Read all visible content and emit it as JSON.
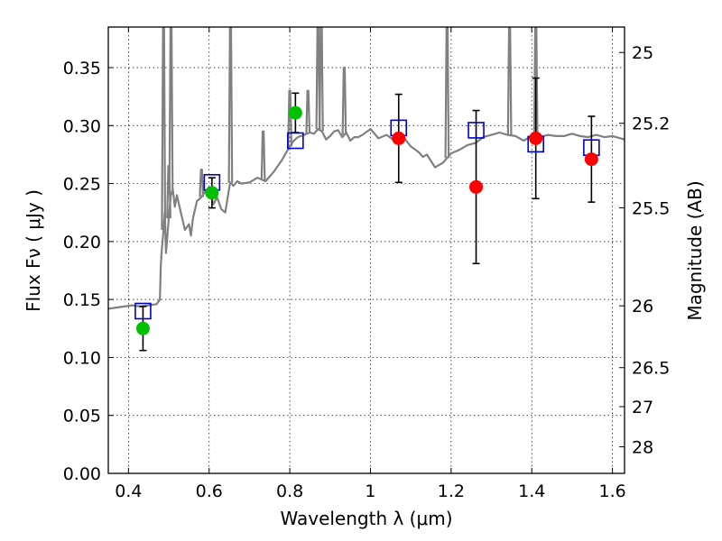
{
  "chart_data": {
    "type": "scatter",
    "xlabel": "Wavelength  λ (μm)",
    "ylabel": "Flux  Fν  ( μJy )",
    "y2label": "Magnitude (AB)",
    "xlim": [
      0.35,
      1.63
    ],
    "ylim": [
      0.0,
      0.385
    ],
    "grid": true,
    "x_ticks": [
      0.4,
      0.6,
      0.8,
      1.0,
      1.2,
      1.4,
      1.6
    ],
    "x_tick_labels": [
      "0.4",
      "0.6",
      "0.8",
      "1",
      "1.2",
      "1.4",
      "1.6"
    ],
    "y_ticks": [
      0.0,
      0.05,
      0.1,
      0.15,
      0.2,
      0.25,
      0.3,
      0.35
    ],
    "y_tick_labels": [
      "0.00",
      "0.05",
      "0.10",
      "0.15",
      "0.20",
      "0.25",
      "0.30",
      "0.35"
    ],
    "y2_ticks": [
      25,
      25.2,
      25.5,
      26,
      26.5,
      27,
      28
    ],
    "y2_tick_labels": [
      "25",
      "25.2",
      "25.5",
      "26",
      "26.5",
      "27",
      "28"
    ],
    "colors": {
      "model": "#808080",
      "model_box": "#0000cc",
      "optical": "#00c000",
      "nir": "#ff0000",
      "errorbar": "#000000"
    },
    "model_spectrum": {
      "x": [
        0.35,
        0.37,
        0.39,
        0.41,
        0.43,
        0.45,
        0.47,
        0.478,
        0.48,
        0.482,
        0.487,
        0.49,
        0.493,
        0.5,
        0.505,
        0.51,
        0.515,
        0.52,
        0.53,
        0.54,
        0.55,
        0.555,
        0.56,
        0.57,
        0.58,
        0.59,
        0.6,
        0.605,
        0.61,
        0.62,
        0.63,
        0.64,
        0.647,
        0.652,
        0.656,
        0.66,
        0.67,
        0.68,
        0.7,
        0.72,
        0.74,
        0.76,
        0.77,
        0.78,
        0.79,
        0.8,
        0.81,
        0.82,
        0.835,
        0.85,
        0.86,
        0.87,
        0.88,
        0.89,
        0.9,
        0.91,
        0.92,
        0.93,
        0.94,
        0.95,
        0.96,
        0.97,
        0.98,
        1.0,
        1.02,
        1.04,
        1.06,
        1.08,
        1.1,
        1.12,
        1.13,
        1.14,
        1.16,
        1.18,
        1.2,
        1.22,
        1.24,
        1.26,
        1.28,
        1.3,
        1.32,
        1.34,
        1.36,
        1.38,
        1.4,
        1.42,
        1.44,
        1.46,
        1.48,
        1.5,
        1.52,
        1.54,
        1.56,
        1.58,
        1.6,
        1.63
      ],
      "flux": [
        0.142,
        0.143,
        0.144,
        0.145,
        0.144,
        0.145,
        0.146,
        0.15,
        0.178,
        0.19,
        0.21,
        0.225,
        0.19,
        0.22,
        0.24,
        0.245,
        0.23,
        0.24,
        0.225,
        0.21,
        0.215,
        0.205,
        0.22,
        0.235,
        0.238,
        0.243,
        0.247,
        0.24,
        0.232,
        0.238,
        0.228,
        0.225,
        0.24,
        0.251,
        0.25,
        0.248,
        0.252,
        0.25,
        0.251,
        0.255,
        0.252,
        0.26,
        0.265,
        0.27,
        0.276,
        0.282,
        0.287,
        0.29,
        0.292,
        0.294,
        0.293,
        0.297,
        0.295,
        0.288,
        0.291,
        0.295,
        0.296,
        0.29,
        0.294,
        0.287,
        0.29,
        0.29,
        0.292,
        0.297,
        0.289,
        0.292,
        0.287,
        0.291,
        0.282,
        0.277,
        0.273,
        0.275,
        0.264,
        0.268,
        0.276,
        0.279,
        0.283,
        0.285,
        0.29,
        0.292,
        0.294,
        0.292,
        0.291,
        0.287,
        0.291,
        0.29,
        0.292,
        0.291,
        0.291,
        0.293,
        0.291,
        0.29,
        0.292,
        0.29,
        0.291,
        0.288
      ]
    },
    "emission_lines": [
      {
        "x": 0.487,
        "peak": 0.39
      },
      {
        "x": 0.5,
        "peak": 0.265
      },
      {
        "x": 0.5055,
        "peak": 0.39
      },
      {
        "x": 0.581,
        "peak": 0.262
      },
      {
        "x": 0.653,
        "peak": 0.39
      },
      {
        "x": 0.734,
        "peak": 0.295
      },
      {
        "x": 0.8,
        "peak": 0.33
      },
      {
        "x": 0.845,
        "peak": 0.33
      },
      {
        "x": 0.87,
        "peak": 0.39
      },
      {
        "x": 0.878,
        "peak": 0.39
      },
      {
        "x": 0.935,
        "peak": 0.35
      },
      {
        "x": 1.19,
        "peak": 0.39
      },
      {
        "x": 1.345,
        "peak": 0.39
      },
      {
        "x": 1.41,
        "peak": 0.39
      }
    ],
    "model_bandpass": [
      {
        "x": 0.436,
        "flux": 0.14
      },
      {
        "x": 0.607,
        "flux": 0.251
      },
      {
        "x": 0.814,
        "flux": 0.287
      },
      {
        "x": 1.07,
        "flux": 0.298
      },
      {
        "x": 1.262,
        "flux": 0.296
      },
      {
        "x": 1.41,
        "flux": 0.284
      },
      {
        "x": 1.548,
        "flux": 0.281
      }
    ],
    "series": [
      {
        "group": "optical",
        "points": [
          {
            "x": 0.436,
            "y": 0.125,
            "err": 0.019
          },
          {
            "x": 0.607,
            "y": 0.242,
            "err": 0.013
          },
          {
            "x": 0.814,
            "y": 0.311,
            "err": 0.017
          }
        ]
      },
      {
        "group": "nir",
        "points": [
          {
            "x": 1.07,
            "y": 0.289,
            "err": 0.038
          },
          {
            "x": 1.262,
            "y": 0.247,
            "err": 0.066
          },
          {
            "x": 1.41,
            "y": 0.289,
            "err": 0.052
          },
          {
            "x": 1.548,
            "y": 0.271,
            "err": 0.037
          }
        ]
      }
    ]
  }
}
